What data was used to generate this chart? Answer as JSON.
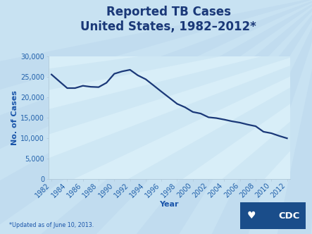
{
  "title_line1": "Reported TB Cases",
  "title_line2": "United States, 1982–2012*",
  "xlabel": "Year",
  "ylabel": "No. of Cases",
  "footnote": "*Updated as of June 10, 2013.",
  "title_color": "#1a3878",
  "line_color": "#1a3878",
  "axis_label_color": "#1a55aa",
  "tick_label_color": "#2060aa",
  "bg_color_outer": "#c8e2f2",
  "bg_color_plot": "#d8eef8",
  "ray_color": "#bcd8ee",
  "years": [
    1982,
    1983,
    1984,
    1985,
    1986,
    1987,
    1988,
    1989,
    1990,
    1991,
    1992,
    1993,
    1994,
    1995,
    1996,
    1997,
    1998,
    1999,
    2000,
    2001,
    2002,
    2003,
    2004,
    2005,
    2006,
    2007,
    2008,
    2009,
    2010,
    2011,
    2012
  ],
  "cases": [
    25520,
    23846,
    22201,
    22201,
    22768,
    22517,
    22436,
    23495,
    25701,
    26283,
    26673,
    25313,
    24361,
    22860,
    21337,
    19855,
    18361,
    17531,
    16377,
    15989,
    15078,
    14874,
    14511,
    14093,
    13767,
    13293,
    12898,
    11545,
    11182,
    10528,
    9945
  ],
  "ylim": [
    0,
    30000
  ],
  "yticks": [
    0,
    5000,
    10000,
    15000,
    20000,
    25000,
    30000
  ],
  "line_width": 1.6,
  "title_fontsize": 12.0,
  "axis_label_fontsize": 8.0,
  "tick_fontsize": 7.0,
  "footnote_fontsize": 5.8,
  "logo_color": "#1a4d8a",
  "spine_color": "#b0c8d8"
}
